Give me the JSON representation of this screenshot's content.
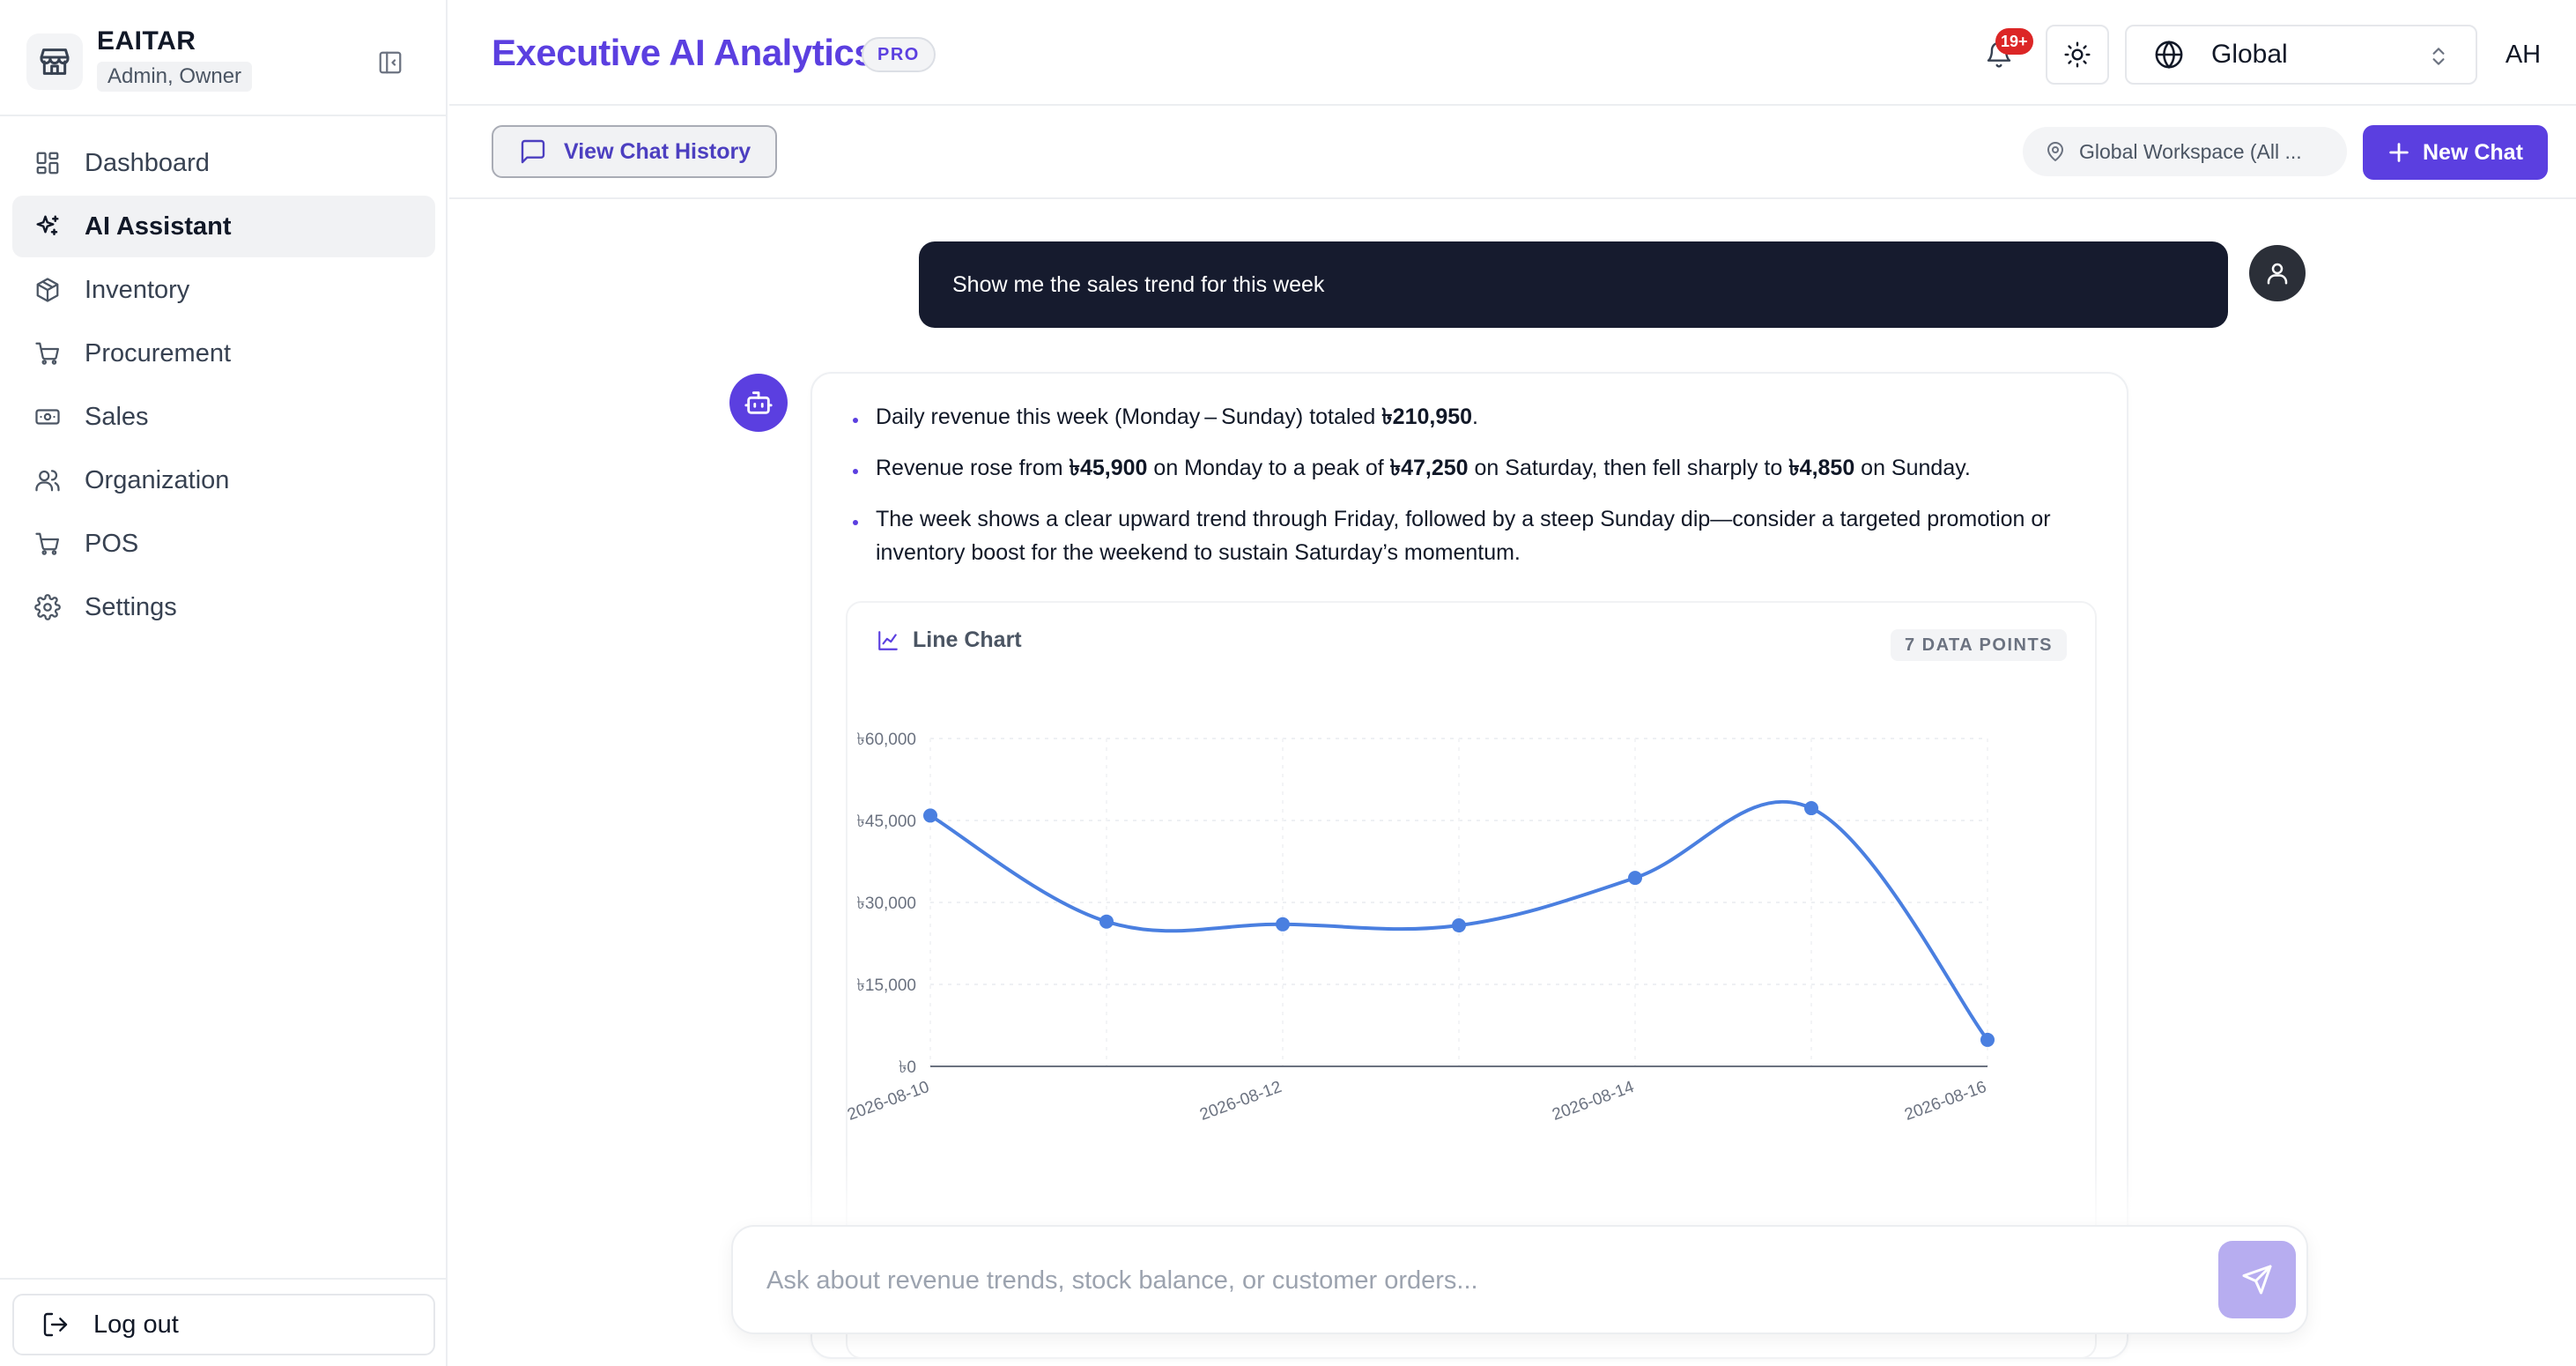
{
  "sidebar": {
    "brand_name": "EAITAR",
    "brand_role": "Admin, Owner",
    "items": [
      {
        "label": "Dashboard",
        "icon": "dashboard-icon"
      },
      {
        "label": "AI Assistant",
        "icon": "sparkles-icon",
        "active": true
      },
      {
        "label": "Inventory",
        "icon": "box-icon"
      },
      {
        "label": "Procurement",
        "icon": "cart-icon"
      },
      {
        "label": "Sales",
        "icon": "banknote-icon"
      },
      {
        "label": "Organization",
        "icon": "users-icon"
      },
      {
        "label": "POS",
        "icon": "cart-icon"
      },
      {
        "label": "Settings",
        "icon": "gear-icon"
      }
    ],
    "logout_label": "Log out"
  },
  "header": {
    "title": "Executive AI Analytics",
    "badge": "PRO",
    "notification_count": "19+",
    "scope": "Global",
    "user_initials": "AH"
  },
  "toolbar": {
    "history_label": "View Chat History",
    "workspace_label": "Global Workspace (All ...",
    "new_chat_label": "New Chat"
  },
  "chat": {
    "user_message": "Show me the sales trend for this week",
    "bullets": [
      {
        "parts": [
          {
            "text": "Daily revenue this week (Monday – Sunday) totaled "
          },
          {
            "text": "৳210,950",
            "bold": true
          },
          {
            "text": "."
          }
        ]
      },
      {
        "parts": [
          {
            "text": "Revenue rose from "
          },
          {
            "text": "৳45,900",
            "bold": true
          },
          {
            "text": " on Monday to a peak of "
          },
          {
            "text": "৳47,250",
            "bold": true
          },
          {
            "text": " on Saturday, then fell sharply to "
          },
          {
            "text": "৳4,850",
            "bold": true
          },
          {
            "text": " on Sunday."
          }
        ]
      },
      {
        "parts": [
          {
            "text": "The week shows a clear upward trend through Friday, followed by a steep Sunday dip—consider a targeted promotion or inventory boost for the weekend to sustain Saturday’s momentum."
          }
        ]
      }
    ],
    "chart_title": "Line Chart",
    "chart_points_label": "7 DATA POINTS"
  },
  "composer": {
    "placeholder": "Ask about revenue trends, stock balance, or customer orders..."
  },
  "colors": {
    "accent": "#5b3fe0",
    "line": "#4a7fe0",
    "user_bubble": "#161b2e"
  },
  "chart_data": {
    "type": "line",
    "x": [
      "2026-08-10",
      "2026-08-11",
      "2026-08-12",
      "2026-08-13",
      "2026-08-14",
      "2026-08-15",
      "2026-08-16"
    ],
    "x_tick_labels": [
      "2026-08-10",
      "2026-08-12",
      "2026-08-14",
      "2026-08-16"
    ],
    "y": [
      45900,
      26500,
      26000,
      25800,
      34500,
      47250,
      4850
    ],
    "y_ticks": [
      0,
      15000,
      30000,
      45000,
      60000
    ],
    "y_tick_labels": [
      "৳0",
      "৳15,000",
      "৳30,000",
      "৳45,000",
      "৳60,000"
    ],
    "ylim": [
      0,
      60000
    ],
    "grid": true,
    "legend": "none"
  }
}
